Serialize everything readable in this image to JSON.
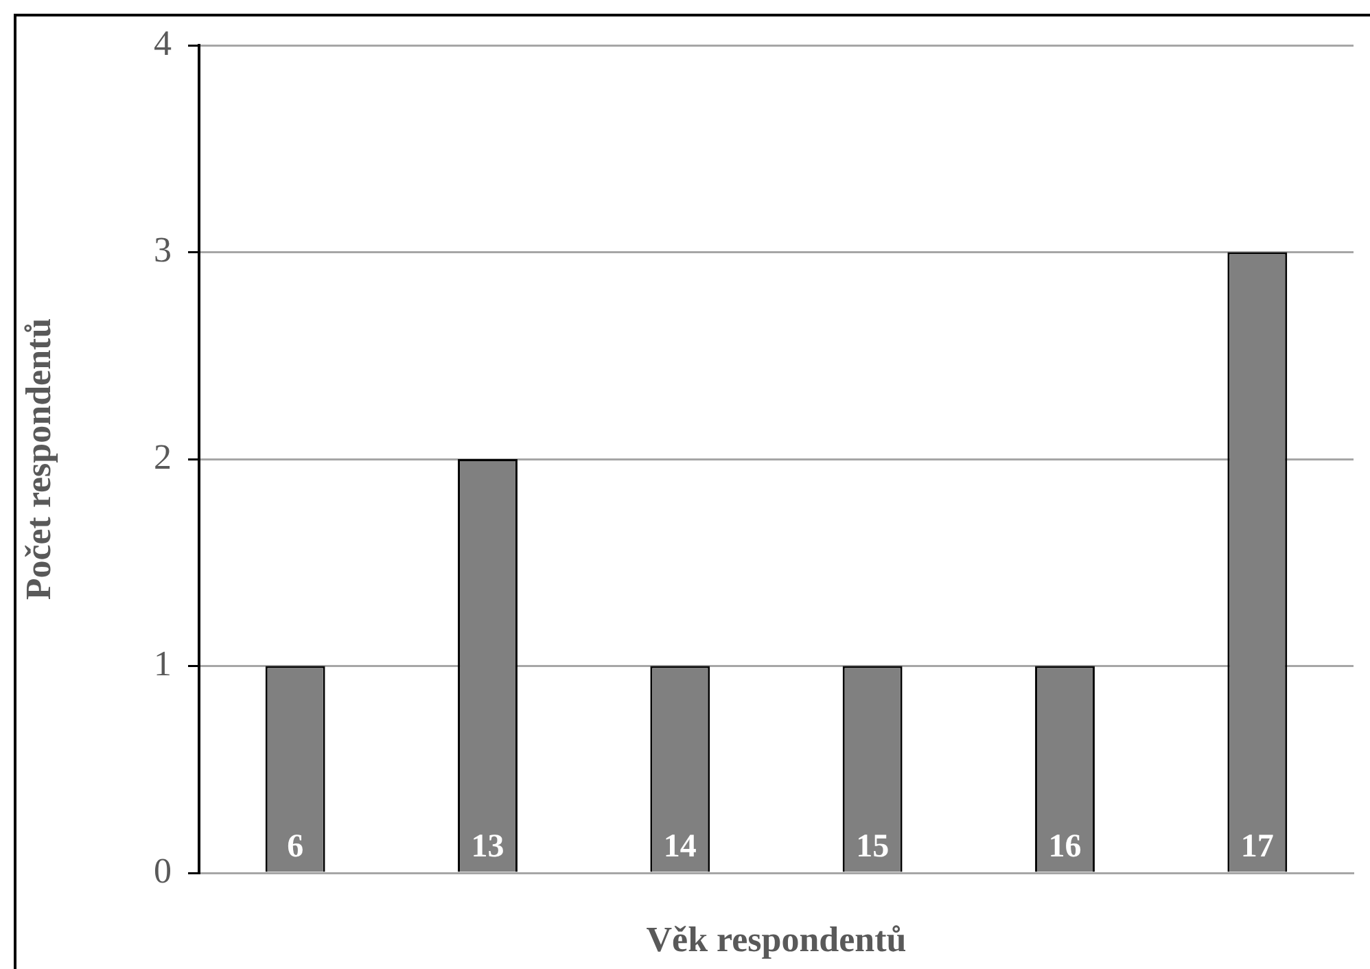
{
  "chart_data": {
    "type": "bar",
    "xlabel": "Věk respondentů",
    "ylabel": "Počet respondentů",
    "categories": [
      "6",
      "13",
      "14",
      "15",
      "16",
      "17"
    ],
    "values": [
      1,
      2,
      1,
      1,
      1,
      3
    ],
    "color": "#808080",
    "ylim": [
      0,
      4
    ],
    "yticks": [
      0,
      1,
      2,
      3,
      4
    ],
    "grid": "y",
    "legend": false
  }
}
